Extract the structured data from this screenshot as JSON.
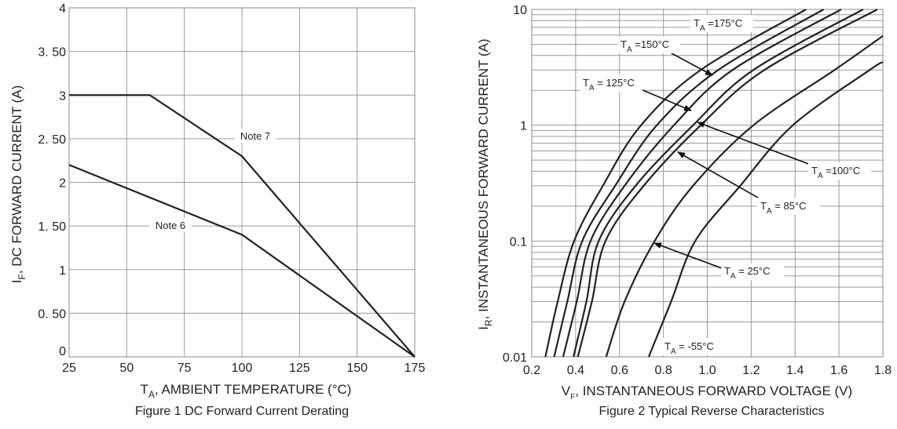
{
  "chart_data": [
    {
      "type": "line",
      "title": "Figure 1  DC Forward Current Derating",
      "xlabel": {
        "main": "T",
        "sub": "A",
        "rest": ", AMBIENT TEMPERATURE (°C)"
      },
      "ylabel": {
        "main": "I",
        "sub": "F",
        "rest": ", DC FORWARD CURRENT (A)"
      },
      "xlim": [
        25,
        175
      ],
      "ylim": [
        0,
        4
      ],
      "xticks": [
        25,
        50,
        75,
        100,
        125,
        150,
        175
      ],
      "xtick_labels": [
        "25",
        "50",
        "75",
        "100",
        "125",
        "150",
        "175"
      ],
      "yticks": [
        0,
        0.5,
        1,
        1.5,
        2,
        2.5,
        3,
        3.5,
        4
      ],
      "ytick_labels": [
        "0",
        "0. 50",
        "1",
        "1. 50",
        "2",
        "2. 50",
        "3",
        "3. 50",
        "4"
      ],
      "grid": true,
      "series": [
        {
          "name": "Note 7",
          "x": [
            25,
            60,
            100,
            175
          ],
          "y": [
            3,
            3,
            2.3,
            0
          ]
        },
        {
          "name": "Note 6",
          "x": [
            25,
            100,
            175
          ],
          "y": [
            2.2,
            1.4,
            0
          ]
        }
      ]
    },
    {
      "type": "line",
      "title": "Figure 2 Typical Reverse Characteristics",
      "xlabel": {
        "main": "V",
        "sub": "F",
        "rest": ", INSTANTANEOUS FORWARD VOLTAGE (V)"
      },
      "ylabel": {
        "main": "I",
        "sub": "R",
        "rest": ", INSTANTANEOUS FORWARD CURRENT (A)"
      },
      "xlim": [
        0.2,
        1.8
      ],
      "ylim": [
        0.01,
        10
      ],
      "yscale": "log",
      "xticks": [
        0.2,
        0.4,
        0.6,
        0.8,
        1.0,
        1.2,
        1.4,
        1.6,
        1.8
      ],
      "xtick_labels": [
        "0.2",
        "0.4",
        "0.6",
        "0.8",
        "1.0",
        "1.2",
        "1.4",
        "1.6",
        "1.8"
      ],
      "yticks": [
        0.01,
        0.1,
        1,
        10
      ],
      "ytick_labels": [
        "0.01",
        "0.1",
        "1",
        "10"
      ],
      "grid": true,
      "series": [
        {
          "name": "TA =175°C",
          "label": {
            "main": "T",
            "sub": "A",
            "rest": " =175°C"
          },
          "x": [
            0.262,
            0.318,
            0.393,
            0.524,
            0.698,
            0.97,
            1.45
          ],
          "y": [
            0.01,
            0.03,
            0.1,
            0.3,
            1,
            3,
            10
          ]
        },
        {
          "name": "TA =150°C",
          "label": {
            "main": "T",
            "sub": "A",
            "rest": " =150°C"
          },
          "x": [
            0.302,
            0.362,
            0.43,
            0.58,
            0.77,
            1.05,
            1.53
          ],
          "y": [
            0.01,
            0.03,
            0.1,
            0.3,
            1,
            3,
            10
          ]
        },
        {
          "name": "TA = 125°C",
          "label": {
            "main": "T",
            "sub": "A",
            "rest": "  = 125°C"
          },
          "x": [
            0.343,
            0.405,
            0.468,
            0.623,
            0.848,
            1.115,
            1.61
          ],
          "y": [
            0.01,
            0.03,
            0.1,
            0.3,
            1,
            3,
            10
          ]
        },
        {
          "name": "TA =100°C",
          "label": {
            "main": "T",
            "sub": "A",
            "rest": " =100°C"
          },
          "x": [
            0.39,
            0.449,
            0.505,
            0.673,
            0.935,
            1.21,
            1.71
          ],
          "y": [
            0.01,
            0.03,
            0.1,
            0.3,
            1,
            3,
            10
          ]
        },
        {
          "name": "TA = 85°C",
          "label": {
            "main": "T",
            "sub": "A",
            "rest": "  = 85°C"
          },
          "x": [
            0.41,
            0.474,
            0.536,
            0.71,
            0.97,
            1.26,
            1.775
          ],
          "y": [
            0.01,
            0.03,
            0.1,
            0.3,
            1,
            3,
            10
          ]
        },
        {
          "name": "TA = 25°C",
          "label": {
            "main": "T",
            "sub": "A",
            "rest": "  = 25°C"
          },
          "x": [
            0.539,
            0.623,
            0.76,
            0.935,
            1.21,
            1.58,
            1.8
          ],
          "y": [
            0.01,
            0.03,
            0.1,
            0.3,
            1,
            3,
            5.9
          ]
        },
        {
          "name": "TA = -55°C",
          "label": {
            "main": "T",
            "sub": "A",
            "rest": "  = -55°C"
          },
          "x": [
            0.733,
            0.835,
            0.945,
            1.15,
            1.39,
            1.74,
            1.8
          ],
          "y": [
            0.01,
            0.03,
            0.1,
            0.3,
            1,
            3,
            3.5
          ]
        }
      ]
    }
  ]
}
